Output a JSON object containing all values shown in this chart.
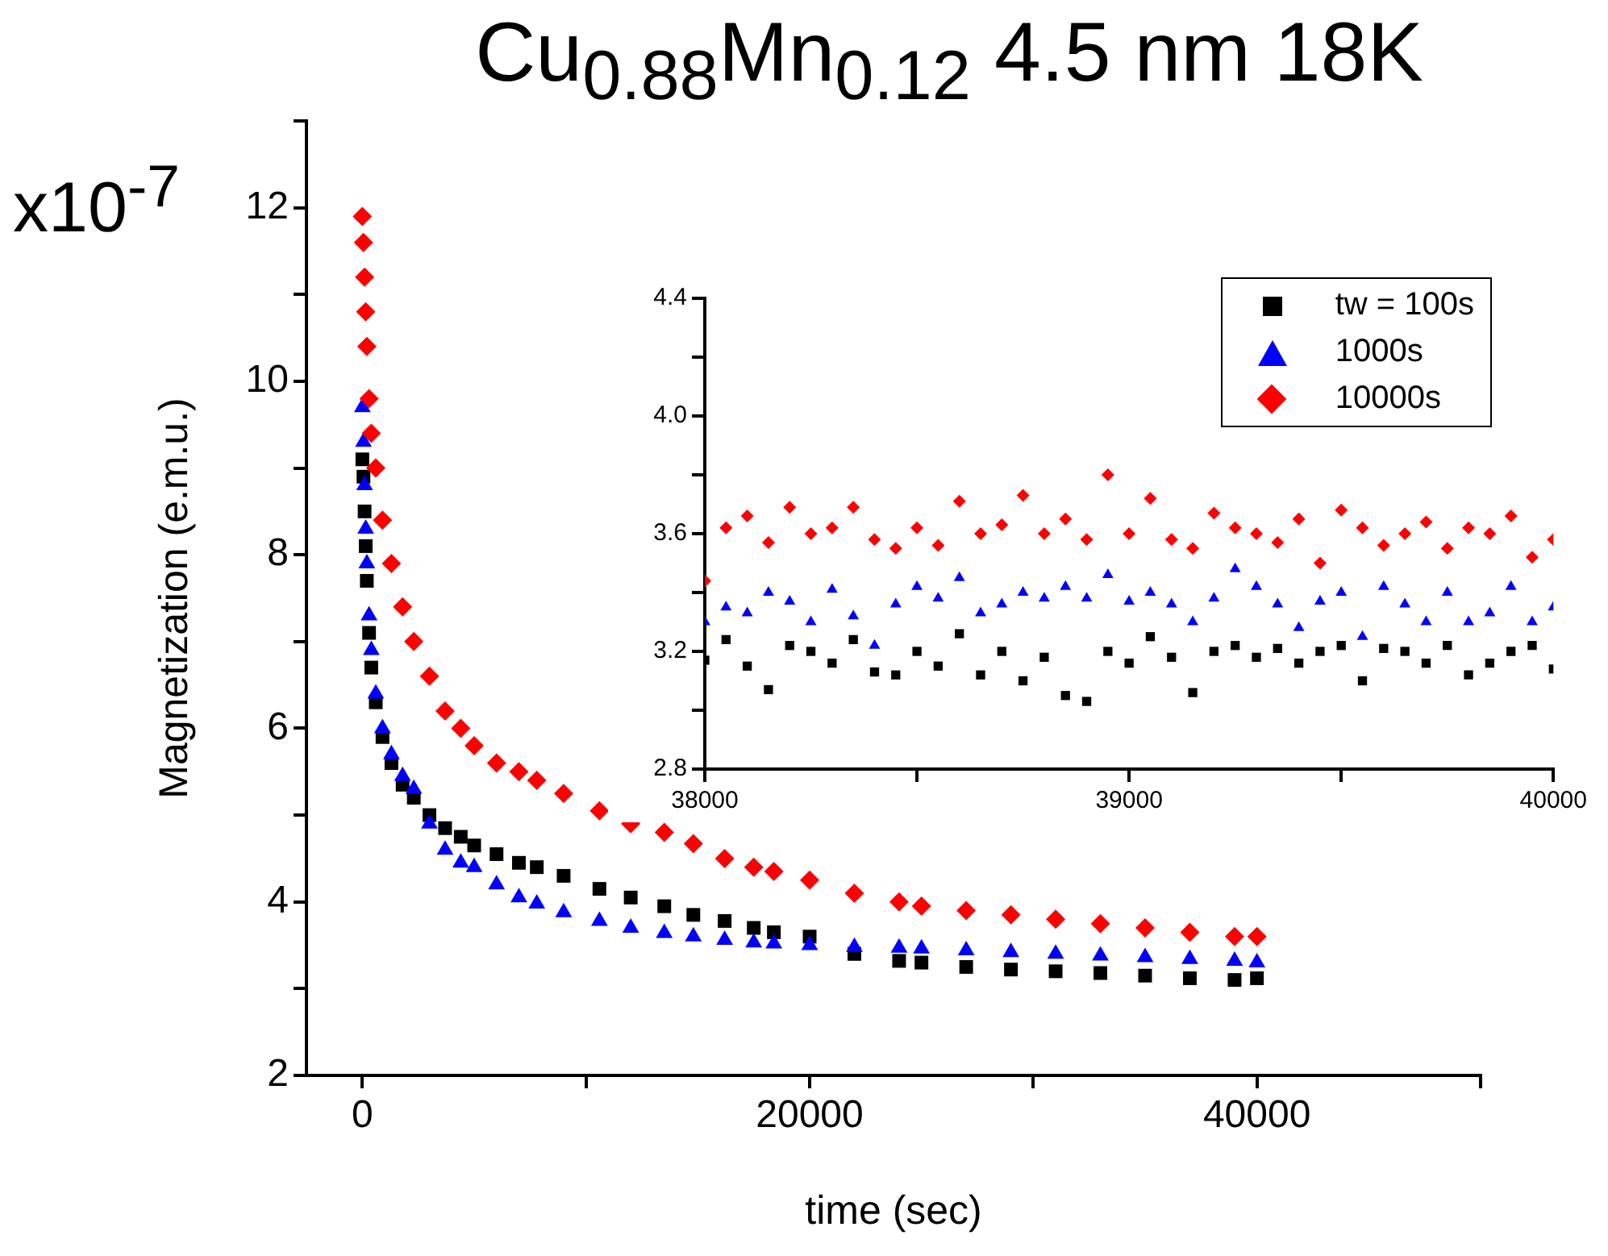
{
  "chart_data": [
    {
      "type": "scatter",
      "title": "Cu$_{0.88}$Mn$_{0.12}$ 4.5 nm 18K",
      "xlabel": "time (sec)",
      "ylabel": "Magnetization (e.m.u.)",
      "annotations": [
        "x10$^{-7}$"
      ],
      "x": [
        0,
        50,
        100,
        150,
        200,
        300,
        400,
        600,
        900,
        1300,
        1800,
        2300,
        3000,
        3700,
        4400,
        5000,
        6000,
        7000,
        7800,
        9000,
        10600,
        12000,
        13500,
        14800,
        16200,
        17500,
        18400,
        20000,
        22000,
        24000,
        25000,
        27000,
        29000,
        31000,
        33000,
        35000,
        37000,
        39000,
        40000
      ],
      "series": [
        {
          "color": "#000000",
          "marker": "square",
          "values": [
            9.1,
            8.9,
            8.5,
            8.1,
            7.7,
            7.1,
            6.7,
            6.3,
            5.9,
            5.6,
            5.35,
            5.2,
            5.0,
            4.85,
            4.75,
            4.65,
            4.55,
            4.45,
            4.4,
            4.3,
            4.15,
            4.05,
            3.95,
            3.85,
            3.78,
            3.7,
            3.65,
            3.6,
            3.4,
            3.32,
            3.3,
            3.25,
            3.22,
            3.2,
            3.18,
            3.15,
            3.12,
            3.1,
            3.12
          ]
        },
        {
          "color": "#0000ff",
          "marker": "triangle",
          "values": [
            9.7,
            9.3,
            8.8,
            8.3,
            7.9,
            7.3,
            6.9,
            6.4,
            6.0,
            5.7,
            5.45,
            5.3,
            4.9,
            4.6,
            4.45,
            4.4,
            4.2,
            4.05,
            3.98,
            3.88,
            3.78,
            3.7,
            3.64,
            3.6,
            3.56,
            3.53,
            3.52,
            3.5,
            3.48,
            3.47,
            3.46,
            3.44,
            3.42,
            3.4,
            3.38,
            3.36,
            3.34,
            3.32,
            3.3
          ]
        },
        {
          "color": "#ff0000",
          "marker": "diamond",
          "values": [
            11.9,
            11.6,
            11.2,
            10.8,
            10.4,
            9.8,
            9.4,
            9.0,
            8.4,
            7.9,
            7.4,
            7.0,
            6.6,
            6.2,
            6.0,
            5.8,
            5.6,
            5.5,
            5.4,
            5.25,
            5.05,
            4.9,
            4.8,
            4.67,
            4.5,
            4.4,
            4.35,
            4.25,
            4.1,
            4.0,
            3.95,
            3.9,
            3.85,
            3.8,
            3.75,
            3.7,
            3.65,
            3.6,
            3.6
          ]
        }
      ],
      "xlim": [
        -2500,
        50000
      ],
      "xticks": [
        0,
        {
          "value": 10000,
          "label": null
        },
        20000,
        {
          "value": 30000,
          "label": null
        },
        40000,
        {
          "value": 50000,
          "label": null
        }
      ],
      "ylim": [
        2,
        13
      ],
      "yticks": [
        2,
        {
          "value": 3,
          "label": null
        },
        4,
        {
          "value": 5,
          "label": null
        },
        6,
        {
          "value": 7,
          "label": null
        },
        8,
        {
          "value": 9,
          "label": null
        },
        10,
        {
          "value": 11,
          "label": null
        },
        12,
        {
          "value": 13,
          "label": null
        }
      ],
      "grid": false,
      "legend": false
    },
    {
      "type": "scatter",
      "x": [
        38000,
        38050,
        38100,
        38150,
        38200,
        38250,
        38300,
        38350,
        38400,
        38450,
        38500,
        38550,
        38600,
        38650,
        38700,
        38750,
        38800,
        38850,
        38900,
        38950,
        39000,
        39050,
        39100,
        39150,
        39200,
        39250,
        39300,
        39350,
        39400,
        39450,
        39500,
        39550,
        39600,
        39650,
        39700,
        39750,
        39800,
        39850,
        39900,
        39950,
        40000
      ],
      "series": [
        {
          "name": "tw = 100s",
          "color": "#000000",
          "marker": "square",
          "values": [
            3.17,
            3.24,
            3.15,
            3.07,
            3.22,
            3.2,
            3.16,
            3.24,
            3.13,
            3.12,
            3.2,
            3.15,
            3.26,
            3.12,
            3.2,
            3.1,
            3.18,
            3.05,
            3.03,
            3.2,
            3.16,
            3.25,
            3.18,
            3.06,
            3.2,
            3.22,
            3.18,
            3.21,
            3.16,
            3.2,
            3.22,
            3.1,
            3.21,
            3.2,
            3.16,
            3.22,
            3.12,
            3.16,
            3.2,
            3.22,
            3.14
          ]
        },
        {
          "name": "1000s",
          "color": "#0000ff",
          "marker": "triangle",
          "values": [
            3.3,
            3.35,
            3.33,
            3.4,
            3.37,
            3.3,
            3.41,
            3.32,
            3.22,
            3.36,
            3.42,
            3.38,
            3.45,
            3.33,
            3.36,
            3.4,
            3.38,
            3.42,
            3.38,
            3.46,
            3.37,
            3.4,
            3.36,
            3.3,
            3.38,
            3.48,
            3.42,
            3.36,
            3.28,
            3.37,
            3.4,
            3.25,
            3.42,
            3.36,
            3.3,
            3.4,
            3.3,
            3.33,
            3.42,
            3.3,
            3.35
          ]
        },
        {
          "name": "10000s",
          "color": "#ff0000",
          "marker": "diamond",
          "values": [
            3.44,
            3.62,
            3.66,
            3.57,
            3.69,
            3.6,
            3.62,
            3.69,
            3.58,
            3.55,
            3.62,
            3.56,
            3.71,
            3.6,
            3.63,
            3.73,
            3.6,
            3.65,
            3.58,
            3.8,
            3.6,
            3.72,
            3.58,
            3.55,
            3.67,
            3.62,
            3.6,
            3.57,
            3.65,
            3.5,
            3.68,
            3.62,
            3.56,
            3.6,
            3.64,
            3.55,
            3.62,
            3.6,
            3.66,
            3.52,
            3.58
          ]
        }
      ],
      "xlim": [
        38000,
        40000
      ],
      "xticks": [
        38000,
        {
          "value": 38500,
          "label": null
        },
        39000,
        {
          "value": 39500,
          "label": null
        },
        40000
      ],
      "ylim": [
        2.8,
        4.4
      ],
      "yticks": [
        2.8,
        {
          "value": 3.0,
          "label": null
        },
        3.2,
        {
          "value": 3.4,
          "label": null
        },
        3.6,
        {
          "value": 3.8,
          "label": null
        },
        {
          "value": 4.0,
          "label": "4.0"
        },
        {
          "value": 4.2,
          "label": null
        },
        4.4
      ],
      "grid": false,
      "legend": "top right"
    }
  ]
}
